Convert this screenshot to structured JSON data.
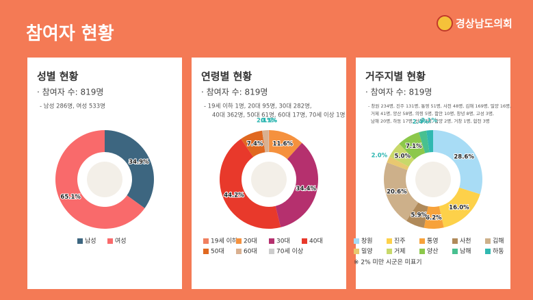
{
  "header": {
    "title": "참여자 현황",
    "logo": "경상남도의회"
  },
  "chart_data": [
    {
      "type": "donut",
      "title": "성별 현황",
      "subtitle": "· 참여자 수: 819명",
      "notes": [
        "- 남성 286명, 여성 533명"
      ],
      "categories": [
        "남성",
        "여성"
      ],
      "values": [
        34.9,
        65.1
      ],
      "value_labels": [
        "34.9%",
        "65.1%"
      ],
      "colors": [
        "#3d6680",
        "#f96a6b"
      ]
    },
    {
      "type": "donut",
      "title": "연령별 현황",
      "subtitle": "· 참여자 수: 819명",
      "notes": [
        "- 19세 이하 1명, 20대 95명, 30대 282명,",
        "40대 362명, 50대 61명, 60대 17명, 70세 이상 1명"
      ],
      "categories": [
        "19세 이하",
        "20대",
        "30대",
        "40대",
        "50대",
        "60대",
        "70세 이상"
      ],
      "values": [
        0.1,
        11.6,
        34.4,
        44.2,
        7.4,
        2.1,
        0.1
      ],
      "value_labels": [
        "0.1%",
        "11.6%",
        "34.4%",
        "44.2%",
        "7.4%",
        "2.1%",
        "0.1%"
      ],
      "colors": [
        "#f08060",
        "#f5913e",
        "#b5306e",
        "#e8392b",
        "#e06820",
        "#d9b090",
        "#cccccc"
      ]
    },
    {
      "type": "donut",
      "title": "거주지별 현황",
      "subtitle": "· 참여자 수: 819명",
      "notes": [
        "- 창원 234명, 진주 131명, 통영 51명, 사천 48명, 김해 169명, 밀양 16명,",
        "거제 41명, 양산 58명, 의령 5명, 함안 10명, 창녕 8명, 고성 3명,",
        "남해 20명, 하동 17명, 산청 2명, 함양 2명, 거창 1명, 합천 3명"
      ],
      "categories": [
        "창원",
        "진주",
        "통영",
        "사천",
        "김해",
        "밀양",
        "거제",
        "양산",
        "남해",
        "하동"
      ],
      "values": [
        28.6,
        16.0,
        6.2,
        5.9,
        20.6,
        2.0,
        5.0,
        7.1,
        2.4,
        2.1
      ],
      "value_labels": [
        "28.6%",
        "16.0%",
        "6.2%",
        "5.9%",
        "20.6%",
        "2.0%",
        "5.0%",
        "7.1%",
        "2.4%",
        "2.1%"
      ],
      "colors": [
        "#a8dcf5",
        "#fdd14a",
        "#f7a23b",
        "#b08a5a",
        "#cdb08a",
        "#e8c870",
        "#c8d86a",
        "#8cc84b",
        "#48c090",
        "#30b8b0"
      ],
      "footnote": "※ 2% 미만 시군은 미표기"
    }
  ]
}
